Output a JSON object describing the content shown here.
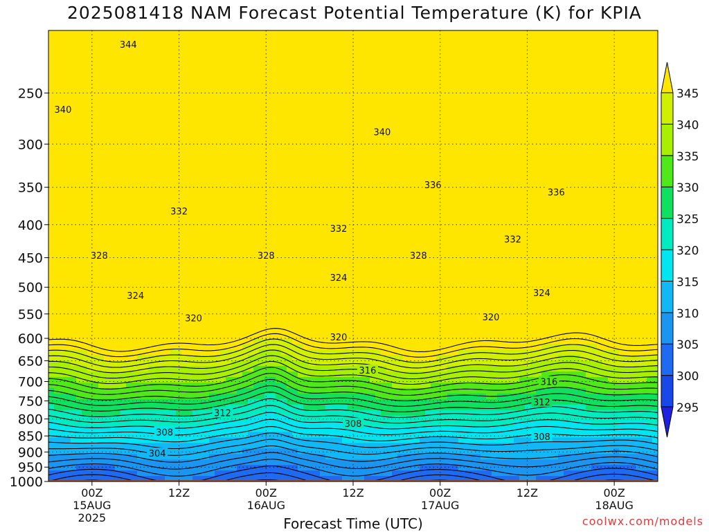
{
  "title": "2025081418 NAM Forecast Potential Temperature (K) for KPIA",
  "credit": "coolwx.com/models",
  "chart_data": {
    "type": "heatmap",
    "title": "2025081418 NAM Forecast Potential Temperature (K) for KPIA",
    "xlabel": "Forecast Time (UTC)",
    "ylabel": "",
    "y_scale": "log",
    "y_inverted": true,
    "ylim": [
      1000,
      200
    ],
    "xlim_hours": [
      -6,
      78
    ],
    "x_ticks": [
      {
        "hour": 0,
        "labels": [
          "00Z",
          "15AUG",
          "2025"
        ]
      },
      {
        "hour": 12,
        "labels": [
          "12Z"
        ]
      },
      {
        "hour": 24,
        "labels": [
          "00Z",
          "16AUG"
        ]
      },
      {
        "hour": 36,
        "labels": [
          "12Z"
        ]
      },
      {
        "hour": 48,
        "labels": [
          "00Z",
          "17AUG"
        ]
      },
      {
        "hour": 60,
        "labels": [
          "12Z"
        ]
      },
      {
        "hour": 72,
        "labels": [
          "00Z",
          "18AUG"
        ]
      }
    ],
    "y_ticks": [
      250,
      300,
      350,
      400,
      450,
      500,
      550,
      600,
      650,
      700,
      750,
      800,
      850,
      900,
      950,
      1000
    ],
    "grid": true,
    "colorbar": {
      "placement": "right",
      "levels": [
        295,
        300,
        305,
        310,
        315,
        320,
        325,
        330,
        335,
        340,
        345
      ],
      "colors": [
        "#2020e0",
        "#1848e8",
        "#1e6af0",
        "#1a95f0",
        "#12b8f5",
        "#00e6f0",
        "#00ecc0",
        "#10e060",
        "#50e818",
        "#a8f000",
        "#d0f000",
        "#ffe600"
      ],
      "extend": "both"
    },
    "contours": [
      {
        "value": 304,
        "label_positions": [
          [
            9,
            904
          ]
        ]
      },
      {
        "value": 308,
        "label_positions": [
          [
            10,
            838
          ],
          [
            36,
            813
          ],
          [
            62,
            852
          ]
        ]
      },
      {
        "value": 312,
        "label_positions": [
          [
            18,
            782
          ],
          [
            62,
            753
          ]
        ]
      },
      {
        "value": 316,
        "label_positions": [
          [
            38,
            672
          ],
          [
            63,
            700
          ]
        ]
      },
      {
        "value": 320,
        "label_positions": [
          [
            14,
            558
          ],
          [
            34,
            597
          ],
          [
            55,
            556
          ]
        ]
      },
      {
        "value": 324,
        "label_positions": [
          [
            6,
            515
          ],
          [
            34,
            483
          ],
          [
            62,
            510
          ]
        ]
      },
      {
        "value": 328,
        "label_positions": [
          [
            1,
            446
          ],
          [
            24,
            446
          ],
          [
            45,
            446
          ]
        ]
      },
      {
        "value": 332,
        "label_positions": [
          [
            12,
            381
          ],
          [
            34,
            405
          ],
          [
            58,
            421
          ]
        ]
      },
      {
        "value": 336,
        "label_positions": [
          [
            47,
            347
          ],
          [
            64,
            356
          ]
        ]
      },
      {
        "value": 340,
        "label_positions": [
          [
            -4,
            265
          ],
          [
            40,
            287
          ]
        ]
      },
      {
        "value": 344,
        "label_positions": [
          [
            5,
            210
          ]
        ]
      }
    ],
    "surface_pressure": 1000,
    "surface_color": "#a0522d"
  }
}
